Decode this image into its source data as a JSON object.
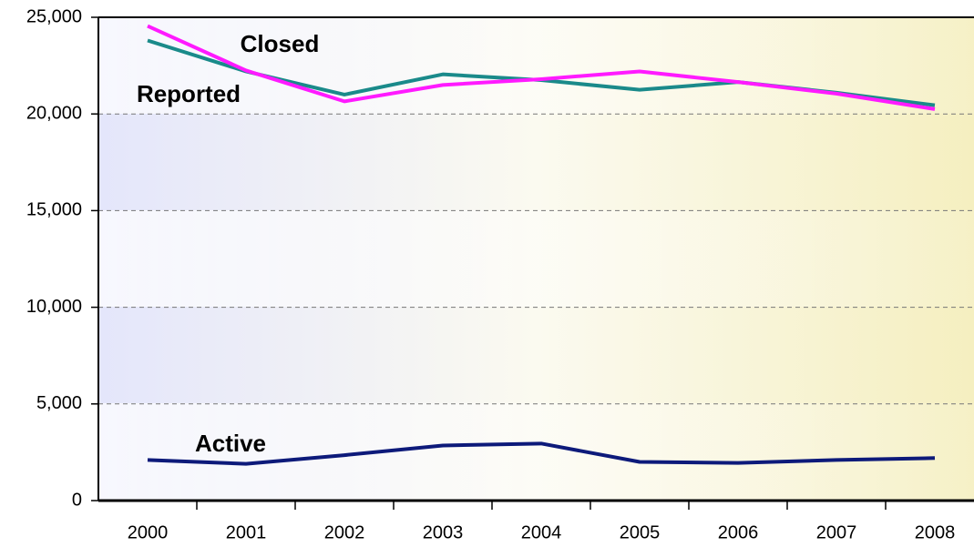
{
  "chart_data": {
    "type": "line",
    "categories": [
      "2000",
      "2001",
      "2002",
      "2003",
      "2004",
      "2005",
      "2006",
      "2007",
      "2008"
    ],
    "series": [
      {
        "name": "Closed",
        "color": "#1a8a8a",
        "values": [
          23800,
          22200,
          21000,
          22050,
          21750,
          21250,
          21650,
          21100,
          20450
        ]
      },
      {
        "name": "Reported",
        "color": "#ff1aff",
        "values": [
          24550,
          22250,
          20650,
          21500,
          21800,
          22200,
          21650,
          21050,
          20250
        ]
      },
      {
        "name": "Active",
        "color": "#0d1a7a",
        "values": [
          2100,
          1900,
          2350,
          2850,
          2950,
          2000,
          1950,
          2100,
          2200
        ]
      }
    ],
    "ylim": [
      0,
      25000
    ],
    "yticks": [
      0,
      {
        "value": 5000,
        "label": "5,000"
      },
      {
        "value": 10000,
        "label": "10,000"
      },
      {
        "value": 15000,
        "label": "15,000"
      },
      {
        "value": 20000,
        "label": "20,000"
      },
      {
        "value": 25000,
        "label": "25,000"
      }
    ],
    "grid": true
  }
}
